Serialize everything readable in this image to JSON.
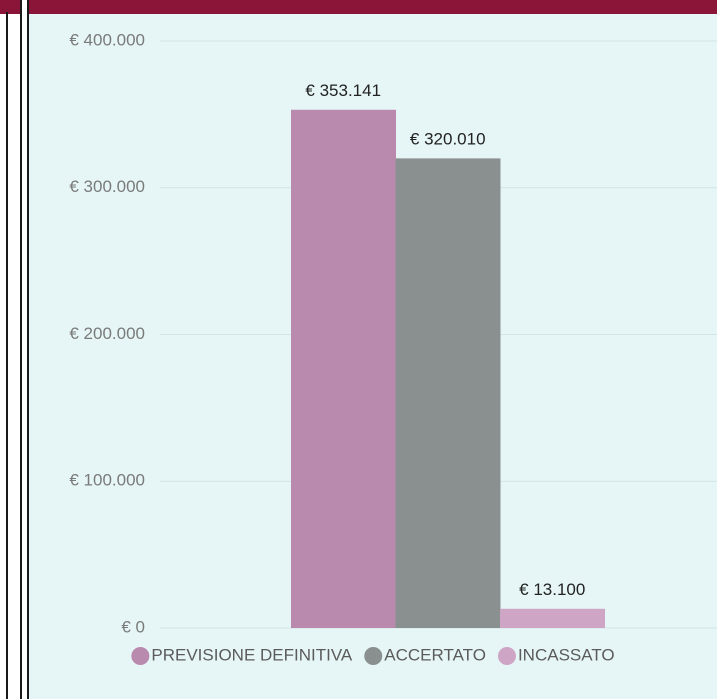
{
  "colors": {
    "brand": "#8b1538",
    "panel_background": "#e6f6f6",
    "gridline": "#d2e4e4"
  },
  "chart_data": {
    "type": "bar",
    "categories": [
      ""
    ],
    "series": [
      {
        "name": "PREVISIONE DEFINITIVA",
        "values": [
          353141
        ],
        "color": "#b98aae",
        "label": "€ 353.141"
      },
      {
        "name": "ACCERTATO",
        "values": [
          320010
        ],
        "color": "#8a9090",
        "label": "€ 320.010"
      },
      {
        "name": "INCASSATO",
        "values": [
          13100
        ],
        "color": "#cfa5c5",
        "label": "€ 13.100"
      }
    ],
    "y_ticks": [
      0,
      100000,
      200000,
      300000,
      400000
    ],
    "y_tick_labels": [
      "€ 0",
      "€ 100.000",
      "€ 200.000",
      "€ 300.000",
      "€ 400.000"
    ],
    "ylim": [
      0,
      400000
    ],
    "grid": true,
    "legend": "bottom",
    "title": "",
    "xlabel": "",
    "ylabel": ""
  }
}
